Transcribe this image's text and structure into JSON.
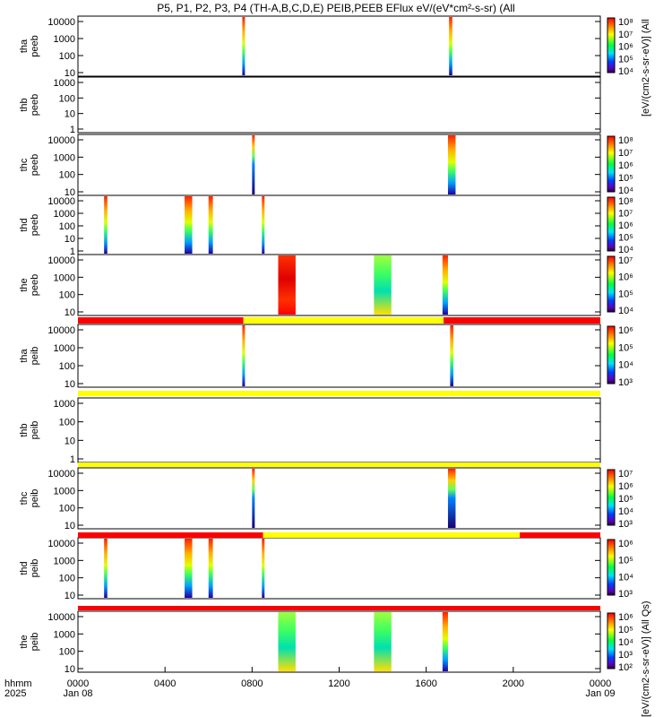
{
  "title": "P5, P1, P2, P3, P4 (TH-A,B,C,D,E) PEIB,PEEB EFlux eV/(eV*cm²-s-sr) (All",
  "units_label": "[eV/(cm2-s-sr-eV)] (All Qs)",
  "units_label_main": "[eV/(cm2-s-sr-eV)] (All",
  "xaxis": {
    "caption_line1": "hhmm",
    "caption_line2": "2025",
    "ticks": [
      "0000",
      "0400",
      "0800",
      "1200",
      "1600",
      "2000",
      "0000"
    ],
    "start_date": "Jan 08",
    "end_date": "Jan 09"
  },
  "chart_data": [
    {
      "type": "heatmap",
      "label": [
        "tha",
        "peeb"
      ],
      "ticks": [
        "10",
        "100",
        "1000",
        "10000"
      ],
      "cbar": [
        "10⁴",
        "10⁵",
        "10⁶",
        "10⁷",
        "10⁸"
      ],
      "blocks": [
        [
          7.55,
          7.65,
          "full"
        ],
        [
          17.05,
          17.2,
          "full"
        ]
      ]
    },
    {
      "type": "heatmap",
      "label": [
        "thb",
        "peeb"
      ],
      "ticks": [
        "1",
        "10",
        "100",
        "1000"
      ],
      "cbar": [],
      "blocks": []
    },
    {
      "type": "heatmap",
      "label": [
        "thc",
        "peeb"
      ],
      "ticks": [
        "10",
        "100",
        "1000",
        "10000"
      ],
      "cbar": [
        "10⁴",
        "10⁵",
        "10⁶",
        "10⁷",
        "10⁸"
      ],
      "blocks": [
        [
          8.0,
          8.1,
          "dark"
        ],
        [
          17.0,
          17.35,
          "full"
        ]
      ]
    },
    {
      "type": "heatmap",
      "label": [
        "thd",
        "peeb"
      ],
      "ticks": [
        "1",
        "10",
        "100",
        "1000",
        "10000"
      ],
      "cbar": [
        "10⁴",
        "10⁵",
        "10⁶",
        "10⁷",
        "10⁸"
      ],
      "blocks": [
        [
          1.2,
          1.35,
          "full"
        ],
        [
          4.9,
          5.25,
          "full"
        ],
        [
          6.0,
          6.2,
          "full"
        ],
        [
          8.45,
          8.55,
          "full"
        ]
      ]
    },
    {
      "type": "heatmap",
      "label": [
        "the",
        "peeb"
      ],
      "ticks": [
        "10",
        "100",
        "1000",
        "10000"
      ],
      "cbar": [
        "10⁴",
        "10⁵",
        "10⁶",
        "10⁷"
      ],
      "blocks": [
        [
          9.2,
          10.0,
          "hot"
        ],
        [
          13.6,
          14.4,
          "green"
        ],
        [
          16.75,
          17.0,
          "full"
        ]
      ]
    },
    {
      "type": "heatmap",
      "label": [
        "tha",
        "peib"
      ],
      "ticks": [
        "10",
        "100",
        "1000",
        "10000"
      ],
      "cbar": [
        "10³",
        "10⁴",
        "10⁵",
        "10⁶"
      ],
      "blocks": [
        [
          7.55,
          7.65,
          "full"
        ],
        [
          17.1,
          17.25,
          "full"
        ]
      ]
    },
    {
      "type": "heatmap",
      "label": [
        "thb",
        "peib"
      ],
      "ticks": [
        "1",
        "10",
        "100",
        "1000"
      ],
      "cbar": [],
      "blocks": []
    },
    {
      "type": "heatmap",
      "label": [
        "thc",
        "peib"
      ],
      "ticks": [
        "10",
        "100",
        "1000",
        "10000"
      ],
      "cbar": [
        "10³",
        "10⁴",
        "10⁵",
        "10⁶",
        "10⁷"
      ],
      "blocks": [
        [
          8.0,
          8.1,
          "dark"
        ],
        [
          17.0,
          17.35,
          "dark"
        ]
      ]
    },
    {
      "type": "heatmap",
      "label": [
        "thd",
        "peib"
      ],
      "ticks": [
        "10",
        "100",
        "1000",
        "10000"
      ],
      "cbar": [
        "10³",
        "10⁴",
        "10⁵",
        "10⁶"
      ],
      "blocks": [
        [
          1.2,
          1.35,
          "full"
        ],
        [
          4.9,
          5.25,
          "full"
        ],
        [
          6.0,
          6.2,
          "full"
        ],
        [
          8.45,
          8.55,
          "full"
        ]
      ]
    },
    {
      "type": "heatmap",
      "label": [
        "the",
        "peib"
      ],
      "ticks": [
        "10",
        "100",
        "1000",
        "10000"
      ],
      "cbar": [
        "10²",
        "10³",
        "10⁴",
        "10⁵",
        "10⁶"
      ],
      "blocks": [
        [
          9.2,
          10.0,
          "green"
        ],
        [
          13.6,
          14.4,
          "green"
        ],
        [
          16.75,
          17.0,
          "full"
        ]
      ]
    }
  ],
  "mode_bars": [
    {
      "segments": [
        [
          0,
          7.6,
          "#ff0000"
        ],
        [
          7.6,
          16.8,
          "#ffff00"
        ],
        [
          16.8,
          24,
          "#ff0000"
        ]
      ]
    },
    {
      "segments": [
        [
          0,
          24,
          "#ffff00"
        ]
      ]
    },
    {
      "segments": [
        [
          0,
          24,
          "#ffff00"
        ]
      ]
    },
    {
      "segments": [
        [
          0,
          8.5,
          "#ff0000"
        ],
        [
          8.5,
          20.3,
          "#ffff00"
        ],
        [
          20.3,
          24,
          "#ff0000"
        ]
      ]
    },
    {
      "segments": [
        [
          0,
          24,
          "#ff0000"
        ]
      ]
    }
  ]
}
